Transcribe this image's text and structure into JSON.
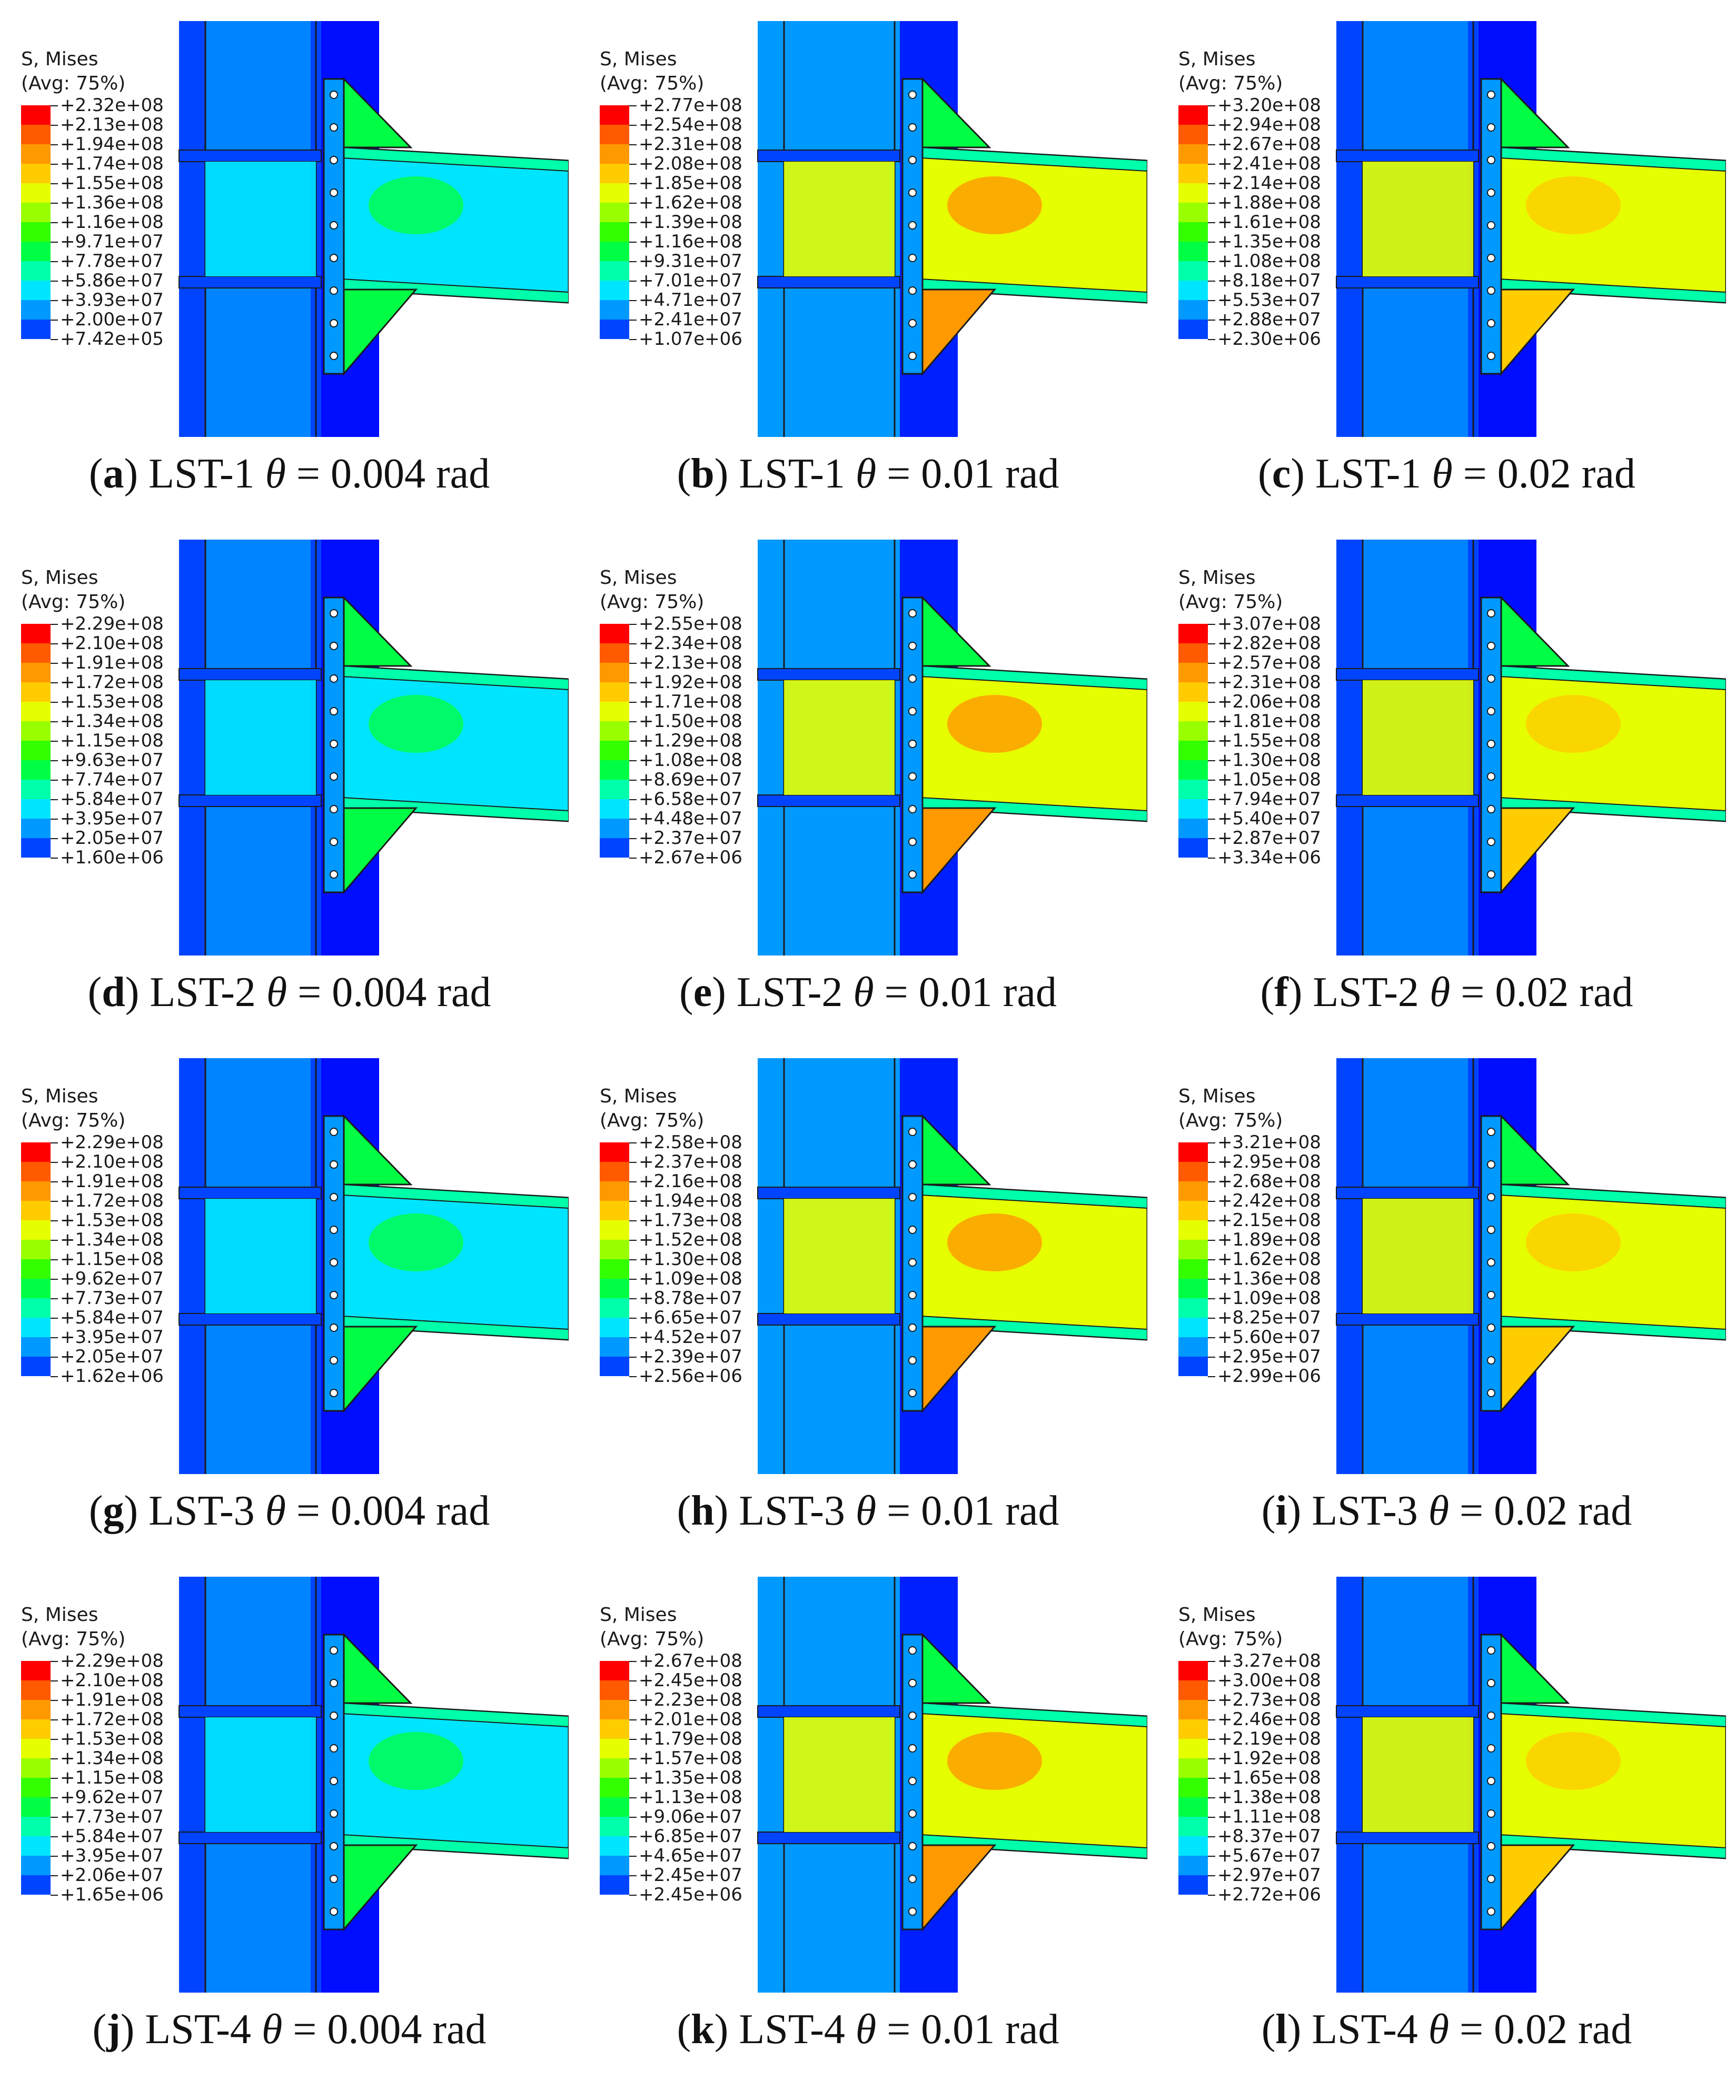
{
  "legend_title_line1": "S, Mises",
  "legend_title_line2": "(Avg: 75%)",
  "colormap": [
    "#ff0000",
    "#ff5a00",
    "#ff9900",
    "#ffcc00",
    "#e6ff00",
    "#99ff00",
    "#33ff00",
    "#00ff44",
    "#00ffaa",
    "#00e5ff",
    "#0099ff",
    "#0044ff",
    "#0000ff"
  ],
  "panels": [
    {
      "letter": "a",
      "specimen": "LST-1",
      "theta": "= 0.004 rad",
      "levels": [
        "+2.32e+08",
        "+2.13e+08",
        "+1.94e+08",
        "+1.74e+08",
        "+1.55e+08",
        "+1.36e+08",
        "+1.16e+08",
        "+9.71e+07",
        "+7.78e+07",
        "+5.86e+07",
        "+3.93e+07",
        "+2.00e+07",
        "+7.42e+05"
      ]
    },
    {
      "letter": "b",
      "specimen": "LST-1",
      "theta": "= 0.01 rad",
      "levels": [
        "+2.77e+08",
        "+2.54e+08",
        "+2.31e+08",
        "+2.08e+08",
        "+1.85e+08",
        "+1.62e+08",
        "+1.39e+08",
        "+1.16e+08",
        "+9.31e+07",
        "+7.01e+07",
        "+4.71e+07",
        "+2.41e+07",
        "+1.07e+06"
      ]
    },
    {
      "letter": "c",
      "specimen": "LST-1",
      "theta": "= 0.02 rad",
      "levels": [
        "+3.20e+08",
        "+2.94e+08",
        "+2.67e+08",
        "+2.41e+08",
        "+2.14e+08",
        "+1.88e+08",
        "+1.61e+08",
        "+1.35e+08",
        "+1.08e+08",
        "+8.18e+07",
        "+5.53e+07",
        "+2.88e+07",
        "+2.30e+06"
      ]
    },
    {
      "letter": "d",
      "specimen": "LST-2",
      "theta": "= 0.004 rad",
      "levels": [
        "+2.29e+08",
        "+2.10e+08",
        "+1.91e+08",
        "+1.72e+08",
        "+1.53e+08",
        "+1.34e+08",
        "+1.15e+08",
        "+9.63e+07",
        "+7.74e+07",
        "+5.84e+07",
        "+3.95e+07",
        "+2.05e+07",
        "+1.60e+06"
      ]
    },
    {
      "letter": "e",
      "specimen": "LST-2",
      "theta": "= 0.01 rad",
      "levels": [
        "+2.55e+08",
        "+2.34e+08",
        "+2.13e+08",
        "+1.92e+08",
        "+1.71e+08",
        "+1.50e+08",
        "+1.29e+08",
        "+1.08e+08",
        "+8.69e+07",
        "+6.58e+07",
        "+4.48e+07",
        "+2.37e+07",
        "+2.67e+06"
      ]
    },
    {
      "letter": "f",
      "specimen": "LST-2",
      "theta": "= 0.02 rad",
      "levels": [
        "+3.07e+08",
        "+2.82e+08",
        "+2.57e+08",
        "+2.31e+08",
        "+2.06e+08",
        "+1.81e+08",
        "+1.55e+08",
        "+1.30e+08",
        "+1.05e+08",
        "+7.94e+07",
        "+5.40e+07",
        "+2.87e+07",
        "+3.34e+06"
      ]
    },
    {
      "letter": "g",
      "specimen": "LST-3",
      "theta": "= 0.004 rad",
      "levels": [
        "+2.29e+08",
        "+2.10e+08",
        "+1.91e+08",
        "+1.72e+08",
        "+1.53e+08",
        "+1.34e+08",
        "+1.15e+08",
        "+9.62e+07",
        "+7.73e+07",
        "+5.84e+07",
        "+3.95e+07",
        "+2.05e+07",
        "+1.62e+06"
      ]
    },
    {
      "letter": "h",
      "specimen": "LST-3",
      "theta": "= 0.01 rad",
      "levels": [
        "+2.58e+08",
        "+2.37e+08",
        "+2.16e+08",
        "+1.94e+08",
        "+1.73e+08",
        "+1.52e+08",
        "+1.30e+08",
        "+1.09e+08",
        "+8.78e+07",
        "+6.65e+07",
        "+4.52e+07",
        "+2.39e+07",
        "+2.56e+06"
      ]
    },
    {
      "letter": "i",
      "specimen": "LST-3",
      "theta": "= 0.02 rad",
      "levels": [
        "+3.21e+08",
        "+2.95e+08",
        "+2.68e+08",
        "+2.42e+08",
        "+2.15e+08",
        "+1.89e+08",
        "+1.62e+08",
        "+1.36e+08",
        "+1.09e+08",
        "+8.25e+07",
        "+5.60e+07",
        "+2.95e+07",
        "+2.99e+06"
      ]
    },
    {
      "letter": "j",
      "specimen": "LST-4",
      "theta": "= 0.004 rad",
      "levels": [
        "+2.29e+08",
        "+2.10e+08",
        "+1.91e+08",
        "+1.72e+08",
        "+1.53e+08",
        "+1.34e+08",
        "+1.15e+08",
        "+9.62e+07",
        "+7.73e+07",
        "+5.84e+07",
        "+3.95e+07",
        "+2.06e+07",
        "+1.65e+06"
      ]
    },
    {
      "letter": "k",
      "specimen": "LST-4",
      "theta": "= 0.01 rad",
      "levels": [
        "+2.67e+08",
        "+2.45e+08",
        "+2.23e+08",
        "+2.01e+08",
        "+1.79e+08",
        "+1.57e+08",
        "+1.35e+08",
        "+1.13e+08",
        "+9.06e+07",
        "+6.85e+07",
        "+4.65e+07",
        "+2.45e+07",
        "+2.45e+06"
      ]
    },
    {
      "letter": "l",
      "specimen": "LST-4",
      "theta": "= 0.02 rad",
      "levels": [
        "+3.27e+08",
        "+3.00e+08",
        "+2.73e+08",
        "+2.46e+08",
        "+2.19e+08",
        "+1.92e+08",
        "+1.65e+08",
        "+1.38e+08",
        "+1.11e+08",
        "+8.37e+07",
        "+5.67e+07",
        "+2.97e+07",
        "+2.72e+06"
      ]
    }
  ]
}
